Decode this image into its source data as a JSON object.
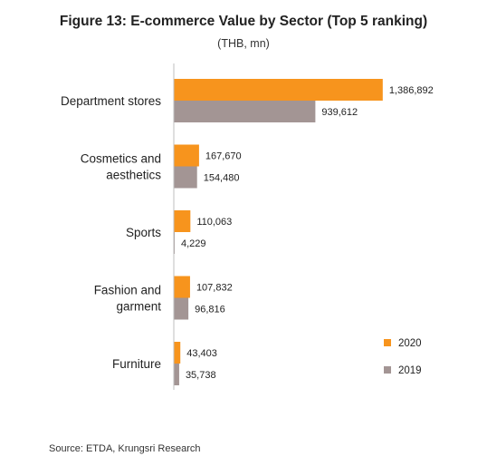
{
  "chart_data": {
    "type": "bar",
    "orientation": "horizontal",
    "title": "Figure 13: E-commerce Value by Sector (Top 5 ranking)",
    "subtitle": "(THB, mn)",
    "categories": [
      [
        "Department stores"
      ],
      [
        "Cosmetics and",
        "aesthetics"
      ],
      [
        "Sports"
      ],
      [
        "Fashion and",
        "garment"
      ],
      [
        "Furniture"
      ]
    ],
    "series": [
      {
        "name": "2020",
        "color": "#F7941D",
        "values": [
          1386892,
          167670,
          110063,
          107832,
          43403
        ],
        "labels": [
          "1,386,892",
          "167,670",
          "110,063",
          "107,832",
          "43,403"
        ]
      },
      {
        "name": "2019",
        "color": "#A39594",
        "values": [
          939612,
          154480,
          4229,
          96816,
          35738
        ],
        "labels": [
          "939,612",
          "154,480",
          "4,229",
          "96,816",
          "35,738"
        ]
      }
    ],
    "xlim": [
      0,
      1400000
    ],
    "grid": false,
    "legend": "bottom-right"
  },
  "source": "Source: ETDA, Krungsri Research"
}
